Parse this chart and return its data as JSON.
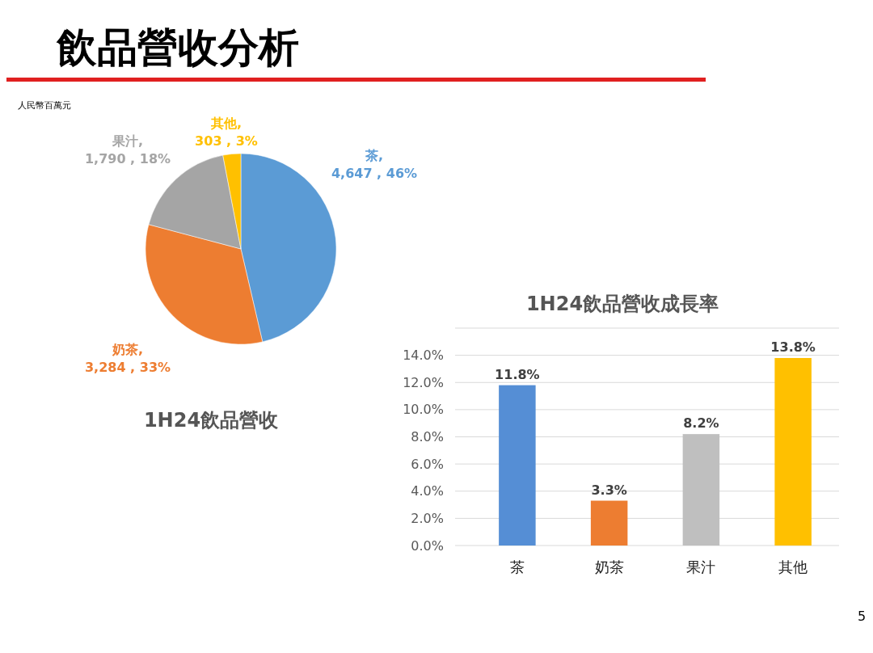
{
  "chart_data": [
    {
      "type": "pie",
      "title": "1H24飲品營收",
      "categories": [
        "茶",
        "奶茶",
        "果汁",
        "其他"
      ],
      "values": [
        4647,
        3284,
        1790,
        303
      ],
      "colors": [
        "#5b9bd5",
        "#ed7d31",
        "#a5a5a5",
        "#ffc000"
      ],
      "value_labels": [
        ",\n4,647 , 46%",
        ",\n3,284 , 33%",
        ",\n1,790 , 18%",
        ",\n303 , 3%"
      ],
      "annotations": [
        "飲品營收分析",
        "人民幣百萬元",
        "5"
      ]
    },
    {
      "type": "bar",
      "title": "1H24飲品營收成長率",
      "categories": [
        "茶",
        "奶茶",
        "果汁",
        "其他"
      ],
      "values": [
        11.8,
        3.3,
        8.2,
        13.8
      ],
      "colors": [
        "#558ed5",
        "#ed7d31",
        "#bfbfbf",
        "#ffc000"
      ],
      "value_labels": [
        "11.8%",
        "3.3%",
        "8.2%",
        "13.8%"
      ],
      "ylim": [
        0,
        16
      ],
      "yticks": [
        {
          "value": 0,
          "label": "0.0%"
        },
        {
          "value": 2,
          "label": "2.0%"
        },
        {
          "value": 4,
          "label": "4.0%"
        },
        {
          "value": 6,
          "label": "6.0%"
        },
        {
          "value": 8,
          "label": "8.0%"
        },
        {
          "value": 10,
          "label": "10.0%"
        },
        {
          "value": 12,
          "label": "12.0%"
        },
        {
          "value": 14,
          "label": "14.0%"
        },
        {
          "value": 16,
          "label": null
        }
      ],
      "grid": "y"
    }
  ]
}
